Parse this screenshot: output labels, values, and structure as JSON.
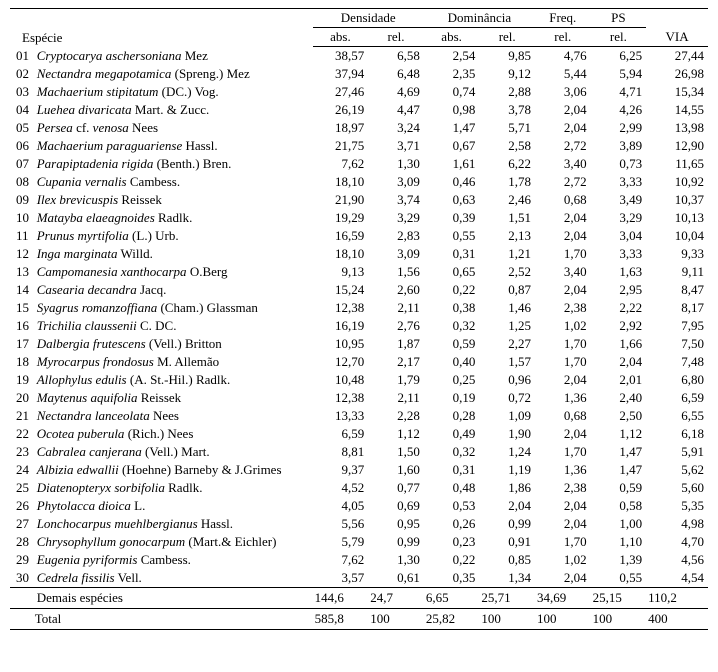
{
  "table": {
    "font_family": "Times New Roman",
    "font_size_pt": 10,
    "colors": {
      "text": "#000000",
      "background": "#ffffff",
      "rule": "#000000"
    },
    "header": {
      "especie": "Espécie",
      "densidade": "Densidade",
      "dominancia": "Dominância",
      "freq": "Freq.",
      "ps": "PS",
      "via": "VIA",
      "abs": "abs.",
      "rel": "rel."
    },
    "rows": [
      {
        "idx": "01",
        "name": "<em>Cryptocarya aschersoniana</em> Mez",
        "dens_abs": "38,57",
        "dens_rel": "6,58",
        "dom_abs": "2,54",
        "dom_rel": "9,85",
        "freq_rel": "4,76",
        "ps_rel": "6,25",
        "via": "27,44"
      },
      {
        "idx": "02",
        "name": "<em>Nectandra megapotamica</em> (Spreng.) Mez",
        "dens_abs": "37,94",
        "dens_rel": "6,48",
        "dom_abs": "2,35",
        "dom_rel": "9,12",
        "freq_rel": "5,44",
        "ps_rel": "5,94",
        "via": "26,98"
      },
      {
        "idx": "03",
        "name": "<em>Machaerium stipitatum</em> (DC.) Vog.",
        "dens_abs": "27,46",
        "dens_rel": "4,69",
        "dom_abs": "0,74",
        "dom_rel": "2,88",
        "freq_rel": "3,06",
        "ps_rel": "4,71",
        "via": "15,34"
      },
      {
        "idx": "04",
        "name": "<em>Luehea divaricata</em> Mart. & Zucc.",
        "dens_abs": "26,19",
        "dens_rel": "4,47",
        "dom_abs": "0,98",
        "dom_rel": "3,78",
        "freq_rel": "2,04",
        "ps_rel": "4,26",
        "via": "14,55"
      },
      {
        "idx": "05",
        "name": "<em>Persea</em> cf. <em>venosa</em> Nees",
        "dens_abs": "18,97",
        "dens_rel": "3,24",
        "dom_abs": "1,47",
        "dom_rel": "5,71",
        "freq_rel": "2,04",
        "ps_rel": "2,99",
        "via": "13,98"
      },
      {
        "idx": "06",
        "name": "<em>Machaerium paraguariense</em> Hassl.",
        "dens_abs": "21,75",
        "dens_rel": "3,71",
        "dom_abs": "0,67",
        "dom_rel": "2,58",
        "freq_rel": "2,72",
        "ps_rel": "3,89",
        "via": "12,90"
      },
      {
        "idx": "07",
        "name": "<em>Parapiptadenia rigida</em> (Benth.) Bren.",
        "dens_abs": "7,62",
        "dens_rel": "1,30",
        "dom_abs": "1,61",
        "dom_rel": "6,22",
        "freq_rel": "3,40",
        "ps_rel": "0,73",
        "via": "11,65"
      },
      {
        "idx": "08",
        "name": "<em>Cupania vernalis</em> Cambess.",
        "dens_abs": "18,10",
        "dens_rel": "3,09",
        "dom_abs": "0,46",
        "dom_rel": "1,78",
        "freq_rel": "2,72",
        "ps_rel": "3,33",
        "via": "10,92"
      },
      {
        "idx": "09",
        "name": "<em>Ilex brevicuspis</em> Reissek",
        "dens_abs": "21,90",
        "dens_rel": "3,74",
        "dom_abs": "0,63",
        "dom_rel": "2,46",
        "freq_rel": "0,68",
        "ps_rel": "3,49",
        "via": "10,37"
      },
      {
        "idx": "10",
        "name": "<em>Matayba elaeagnoides</em> Radlk.",
        "dens_abs": "19,29",
        "dens_rel": "3,29",
        "dom_abs": "0,39",
        "dom_rel": "1,51",
        "freq_rel": "2,04",
        "ps_rel": "3,29",
        "via": "10,13"
      },
      {
        "idx": "11",
        "name": "<em>Prunus myrtifolia</em> (L.) Urb.",
        "dens_abs": "16,59",
        "dens_rel": "2,83",
        "dom_abs": "0,55",
        "dom_rel": "2,13",
        "freq_rel": "2,04",
        "ps_rel": "3,04",
        "via": "10,04"
      },
      {
        "idx": "12",
        "name": "<em>Inga marginata</em> Willd.",
        "dens_abs": "18,10",
        "dens_rel": "3,09",
        "dom_abs": "0,31",
        "dom_rel": "1,21",
        "freq_rel": "1,70",
        "ps_rel": "3,33",
        "via": "9,33"
      },
      {
        "idx": "13",
        "name": "<em>Campomanesia xanthocarpa</em> O.Berg",
        "dens_abs": "9,13",
        "dens_rel": "1,56",
        "dom_abs": "0,65",
        "dom_rel": "2,52",
        "freq_rel": "3,40",
        "ps_rel": "1,63",
        "via": "9,11"
      },
      {
        "idx": "14",
        "name": "<em>Casearia decandra</em> Jacq.",
        "dens_abs": "15,24",
        "dens_rel": "2,60",
        "dom_abs": "0,22",
        "dom_rel": "0,87",
        "freq_rel": "2,04",
        "ps_rel": "2,95",
        "via": "8,47"
      },
      {
        "idx": "15",
        "name": "<em>Syagrus romanzoffiana</em> (Cham.) Glassman",
        "dens_abs": "12,38",
        "dens_rel": "2,11",
        "dom_abs": "0,38",
        "dom_rel": "1,46",
        "freq_rel": "2,38",
        "ps_rel": "2,22",
        "via": "8,17"
      },
      {
        "idx": "16",
        "name": "<em>Trichilia claussenii</em> C. DC.",
        "dens_abs": "16,19",
        "dens_rel": "2,76",
        "dom_abs": "0,32",
        "dom_rel": "1,25",
        "freq_rel": "1,02",
        "ps_rel": "2,92",
        "via": "7,95"
      },
      {
        "idx": "17",
        "name": "<em>Dalbergia frutescens</em> (Vell.) Britton",
        "dens_abs": "10,95",
        "dens_rel": "1,87",
        "dom_abs": "0,59",
        "dom_rel": "2,27",
        "freq_rel": "1,70",
        "ps_rel": "1,66",
        "via": "7,50"
      },
      {
        "idx": "18",
        "name": "<em>Myrocarpus frondosus</em> M. Allemão",
        "dens_abs": "12,70",
        "dens_rel": "2,17",
        "dom_abs": "0,40",
        "dom_rel": "1,57",
        "freq_rel": "1,70",
        "ps_rel": "2,04",
        "via": "7,48"
      },
      {
        "idx": "19",
        "name": "<em>Allophylus edulis</em> (A. St.-Hil.) Radlk.",
        "dens_abs": "10,48",
        "dens_rel": "1,79",
        "dom_abs": "0,25",
        "dom_rel": "0,96",
        "freq_rel": "2,04",
        "ps_rel": "2,01",
        "via": "6,80"
      },
      {
        "idx": "20",
        "name": "<em>Maytenus aquifolia</em> Reissek",
        "dens_abs": "12,38",
        "dens_rel": "2,11",
        "dom_abs": "0,19",
        "dom_rel": "0,72",
        "freq_rel": "1,36",
        "ps_rel": "2,40",
        "via": "6,59"
      },
      {
        "idx": "21",
        "name": "<em>Nectandra lanceolata</em> Nees",
        "dens_abs": "13,33",
        "dens_rel": "2,28",
        "dom_abs": "0,28",
        "dom_rel": "1,09",
        "freq_rel": "0,68",
        "ps_rel": "2,50",
        "via": "6,55"
      },
      {
        "idx": "22",
        "name": "<em>Ocotea puberula</em> (Rich.) Nees",
        "dens_abs": "6,59",
        "dens_rel": "1,12",
        "dom_abs": "0,49",
        "dom_rel": "1,90",
        "freq_rel": "2,04",
        "ps_rel": "1,12",
        "via": "6,18"
      },
      {
        "idx": "23",
        "name": "<em>Cabralea canjerana</em> (Vell.) Mart.",
        "dens_abs": "8,81",
        "dens_rel": "1,50",
        "dom_abs": "0,32",
        "dom_rel": "1,24",
        "freq_rel": "1,70",
        "ps_rel": "1,47",
        "via": "5,91"
      },
      {
        "idx": "24",
        "name": "<em>Albizia edwallii</em> (Hoehne) Barneby & J.Grimes",
        "dens_abs": "9,37",
        "dens_rel": "1,60",
        "dom_abs": "0,31",
        "dom_rel": "1,19",
        "freq_rel": "1,36",
        "ps_rel": "1,47",
        "via": "5,62"
      },
      {
        "idx": "25",
        "name": "<em>Diatenopteryx sorbifolia</em> Radlk.",
        "dens_abs": "4,52",
        "dens_rel": "0,77",
        "dom_abs": "0,48",
        "dom_rel": "1,86",
        "freq_rel": "2,38",
        "ps_rel": "0,59",
        "via": "5,60"
      },
      {
        "idx": "26",
        "name": "<em>Phytolacca dioica</em> L.",
        "dens_abs": "4,05",
        "dens_rel": "0,69",
        "dom_abs": "0,53",
        "dom_rel": "2,04",
        "freq_rel": "2,04",
        "ps_rel": "0,58",
        "via": "5,35"
      },
      {
        "idx": "27",
        "name": "<em>Lonchocarpus muehlbergianus</em> Hassl.",
        "dens_abs": "5,56",
        "dens_rel": "0,95",
        "dom_abs": "0,26",
        "dom_rel": "0,99",
        "freq_rel": "2,04",
        "ps_rel": "1,00",
        "via": "4,98"
      },
      {
        "idx": "28",
        "name": "<em>Chrysophyllum gonocarpum</em> (Mart.& Eichler)",
        "dens_abs": "5,79",
        "dens_rel": "0,99",
        "dom_abs": "0,23",
        "dom_rel": "0,91",
        "freq_rel": "1,70",
        "ps_rel": "1,10",
        "via": "4,70"
      },
      {
        "idx": "29",
        "name": "<em>Eugenia pyriformis</em> Cambess.",
        "dens_abs": "7,62",
        "dens_rel": "1,30",
        "dom_abs": "0,22",
        "dom_rel": "0,85",
        "freq_rel": "1,02",
        "ps_rel": "1,39",
        "via": "4,56"
      },
      {
        "idx": "30",
        "name": "<em>Cedrela fissilis</em> Vell.",
        "dens_abs": "3,57",
        "dens_rel": "0,61",
        "dom_abs": "0,35",
        "dom_rel": "1,34",
        "freq_rel": "2,04",
        "ps_rel": "0,55",
        "via": "4,54"
      }
    ],
    "subtotal": {
      "label": "Demais espécies",
      "dens_abs": "144,6",
      "dens_rel": "24,7",
      "dom_abs": "6,65",
      "dom_rel": "25,71",
      "freq_rel": "34,69",
      "ps_rel": "25,15",
      "via": "110,2"
    },
    "total": {
      "label": "Total",
      "dens_abs": "585,8",
      "dens_rel": "100",
      "dom_abs": "25,82",
      "dom_rel": "100",
      "freq_rel": "100",
      "ps_rel": "100",
      "via": "400"
    }
  }
}
